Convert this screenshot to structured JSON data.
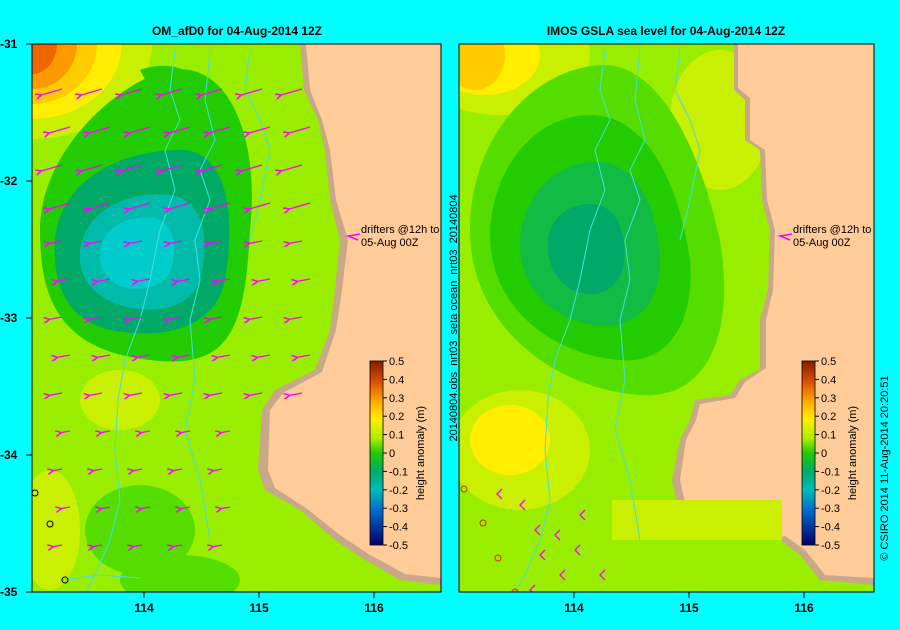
{
  "colors": {
    "background": "#00ffff",
    "land": "#ffcc99",
    "shelf": "#c8a888",
    "drifter": "#ff00ff",
    "river": "#40e0e0"
  },
  "left_map": {
    "title": "OM_afD0 for 04-Aug-2014 12Z",
    "drifter_note_line1": "drifters @12h to",
    "drifter_note_line2": "05-Aug 00Z",
    "colorbar_label": "height anomaly (m)"
  },
  "right_map": {
    "title": "IMOS GSLA sea level  for 04-Aug-2014 12Z",
    "side_label": "20140804.obs_nrt03_seta    ocean_nrt03_20140804",
    "drifter_note_line1": "drifters @12h to",
    "drifter_note_line2": "05-Aug 00Z",
    "colorbar_label": "height anomaly (m)"
  },
  "lat_ticks": [
    "-31",
    "-32",
    "-33",
    "-34",
    "-35"
  ],
  "lon_ticks": [
    "114",
    "115",
    "116"
  ],
  "colorbar_ticks": [
    "0.5",
    "0.4",
    "0.3",
    "0.2",
    "0.1",
    "0",
    "-0.1",
    "-0.2",
    "-0.3",
    "-0.4",
    "-0.5"
  ],
  "footer": "© CSIRO 2014   11-Aug-2014 20:20:51"
}
